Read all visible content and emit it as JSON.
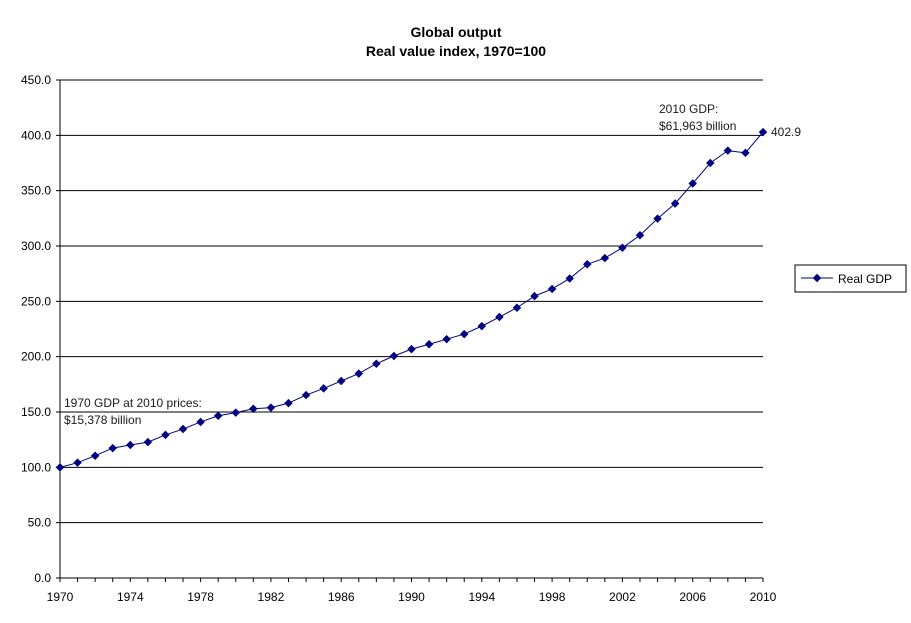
{
  "chart_data": {
    "type": "line",
    "title": "Global output",
    "subtitle": "Real value index, 1970=100",
    "xlabel": "",
    "ylabel": "",
    "ylim": [
      0,
      450
    ],
    "y_ticks": [
      "0.0",
      "50.0",
      "100.0",
      "150.0",
      "200.0",
      "250.0",
      "300.0",
      "350.0",
      "400.0",
      "450.0"
    ],
    "xlim": [
      1970,
      2010
    ],
    "x_ticks": [
      "1970",
      "1974",
      "1978",
      "1982",
      "1986",
      "1990",
      "1994",
      "1998",
      "2002",
      "2006",
      "2010"
    ],
    "grid": "horizontal",
    "legend_position": "right",
    "series": [
      {
        "name": "Real GDP",
        "color": "#000080",
        "x": [
          1970,
          1971,
          1972,
          1973,
          1974,
          1975,
          1976,
          1977,
          1978,
          1979,
          1980,
          1981,
          1982,
          1983,
          1984,
          1985,
          1986,
          1987,
          1988,
          1989,
          1990,
          1991,
          1992,
          1993,
          1994,
          1995,
          1996,
          1997,
          1998,
          1999,
          2000,
          2001,
          2002,
          2003,
          2004,
          2005,
          2006,
          2007,
          2008,
          2009,
          2010
        ],
        "values": [
          100.0,
          104.2,
          110.5,
          117.4,
          120.2,
          122.8,
          129.3,
          134.6,
          141.0,
          146.6,
          149.4,
          152.9,
          154.0,
          158.0,
          165.3,
          171.3,
          178.0,
          184.7,
          193.6,
          200.6,
          206.8,
          211.2,
          215.8,
          220.4,
          227.6,
          235.8,
          244.2,
          254.7,
          261.2,
          270.6,
          283.5,
          289.1,
          298.4,
          309.7,
          324.7,
          338.4,
          356.5,
          375.0,
          386.2,
          384.2,
          402.9
        ]
      }
    ],
    "annotations": {
      "start_line1": "1970 GDP at 2010 prices:",
      "start_line2": "$15,378 billion",
      "end_line1": "2010 GDP:",
      "end_line2": "$61,963 billion",
      "end_value_label": "402.9"
    }
  }
}
